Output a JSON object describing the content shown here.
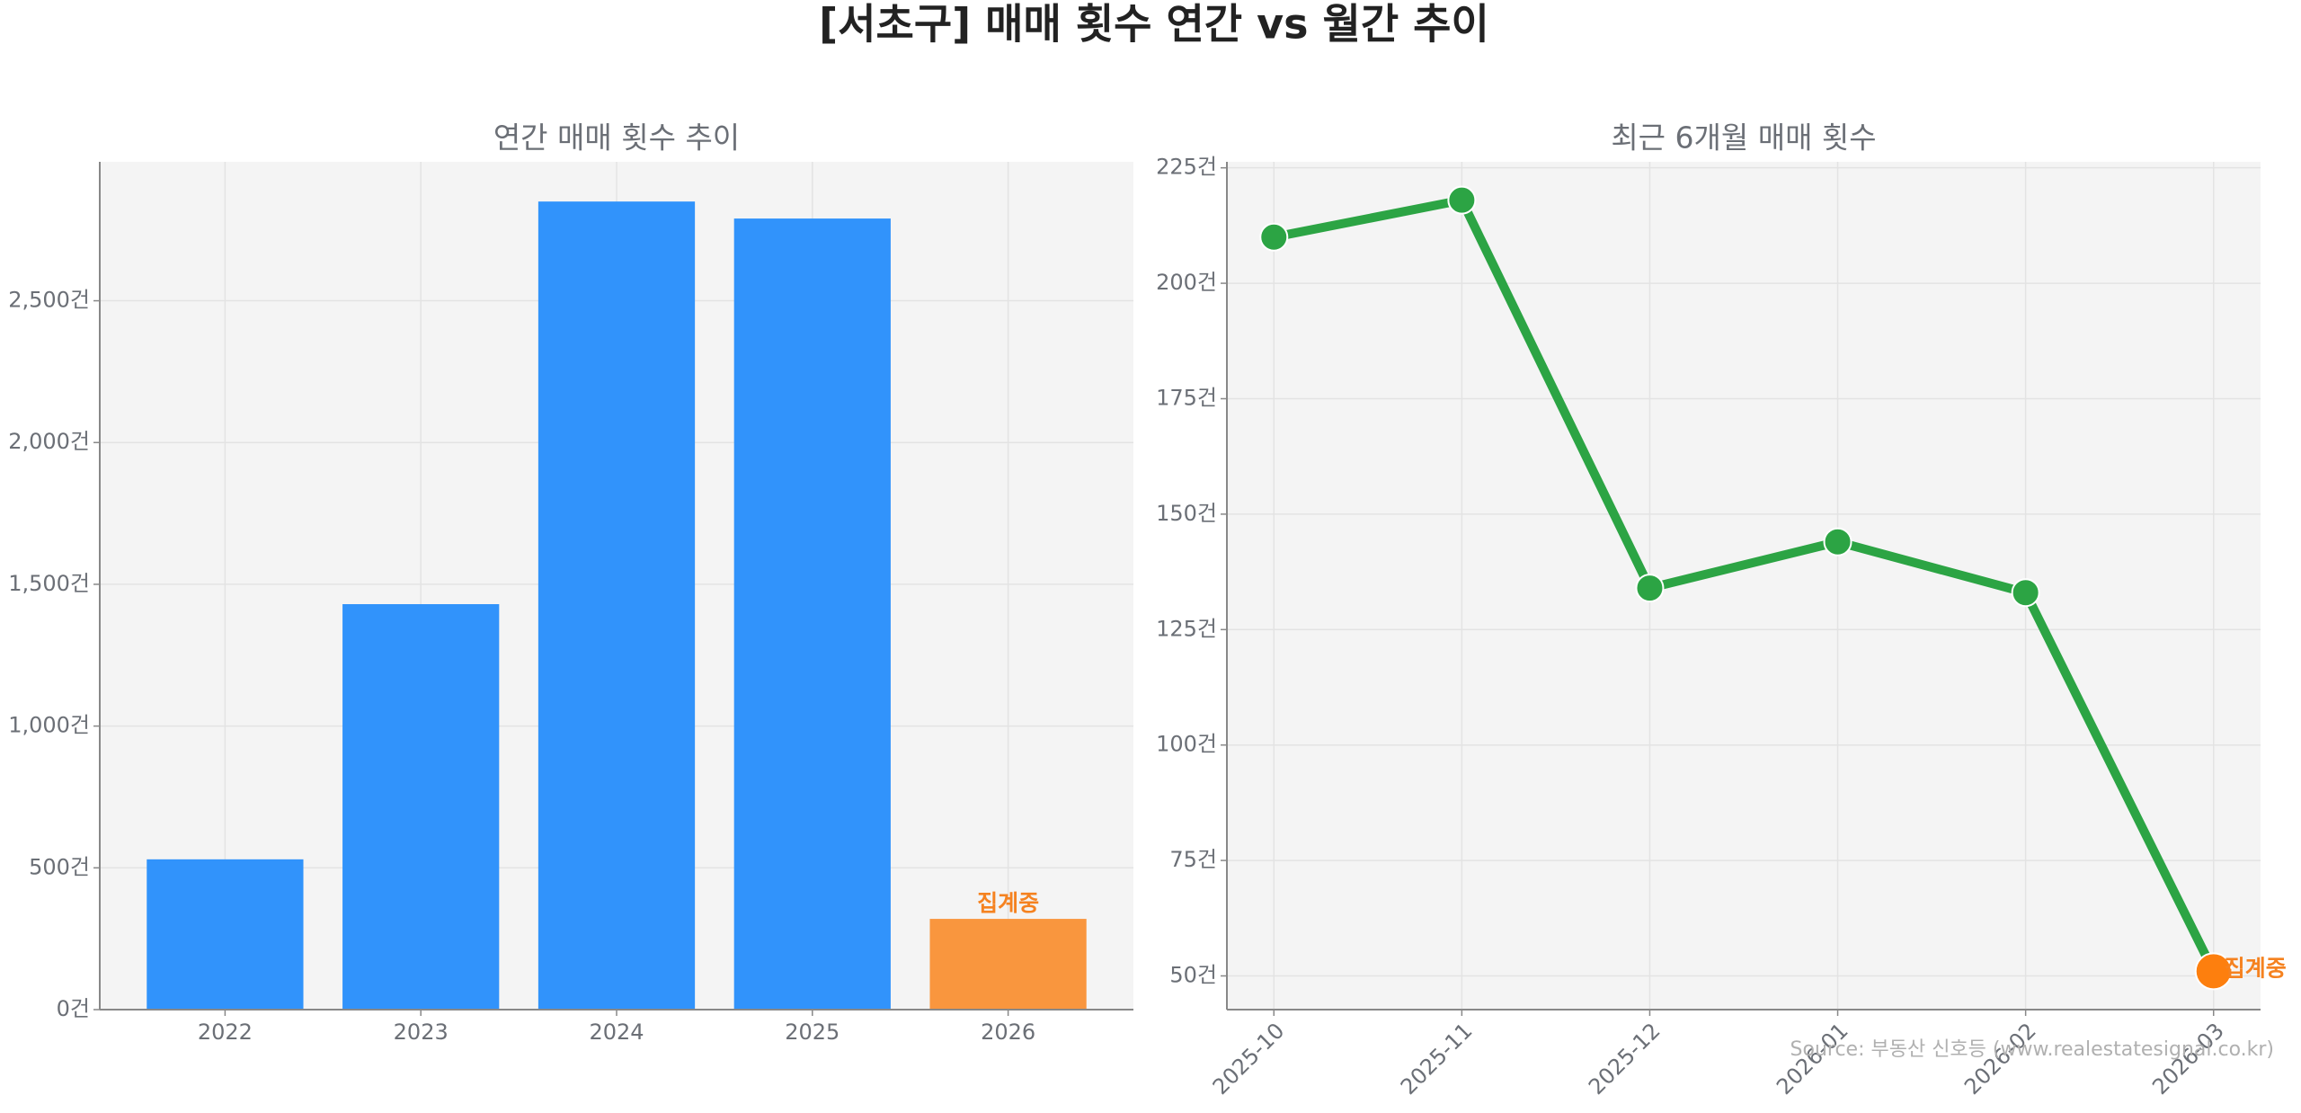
{
  "title": "[서초구] 매매 횟수 연간 vs 월간 추이",
  "source": "Source: 부동산 신호등 (www.realestatesignal.co.kr)",
  "chart_data": [
    {
      "type": "bar",
      "title": "연간 매매 횟수 추이",
      "categories": [
        "2022",
        "2023",
        "2024",
        "2025",
        "2026"
      ],
      "values": [
        530,
        1430,
        2850,
        2790,
        320
      ],
      "colors": [
        "#3193fb",
        "#3193fb",
        "#3193fb",
        "#3193fb",
        "#f9963e"
      ],
      "annotation": "집계중",
      "annotation_color": "#f58220",
      "ylim": [
        0,
        2990
      ],
      "yticks": [
        {
          "value": 0,
          "label": "0건"
        },
        {
          "value": 500,
          "label": "500건"
        },
        {
          "value": 1000,
          "label": "1,000건"
        },
        {
          "value": 1500,
          "label": "1,500건"
        },
        {
          "value": 2000,
          "label": "2,000건"
        },
        {
          "value": 2500,
          "label": "2,500건"
        }
      ],
      "grid": true
    },
    {
      "type": "line",
      "title": "최근 6개월 매매 횟수",
      "categories": [
        "2025-10",
        "2025-11",
        "2025-12",
        "2026-01",
        "2026-02",
        "2026-03"
      ],
      "values": [
        210,
        218,
        134,
        144,
        133,
        51
      ],
      "color": "#2ca444",
      "last_color": "#fd7f0e",
      "annotation": "집계중",
      "annotation_color": "#f58220",
      "ylim": [
        42.7,
        226.3
      ],
      "yticks": [
        {
          "value": 50,
          "label": "50건"
        },
        {
          "value": 75,
          "label": "75건"
        },
        {
          "value": 100,
          "label": "100건"
        },
        {
          "value": 125,
          "label": "125건"
        },
        {
          "value": 150,
          "label": "150건"
        },
        {
          "value": 175,
          "label": "175건"
        },
        {
          "value": 200,
          "label": "200건"
        },
        {
          "value": 225,
          "label": "225건"
        }
      ],
      "grid": true
    }
  ]
}
